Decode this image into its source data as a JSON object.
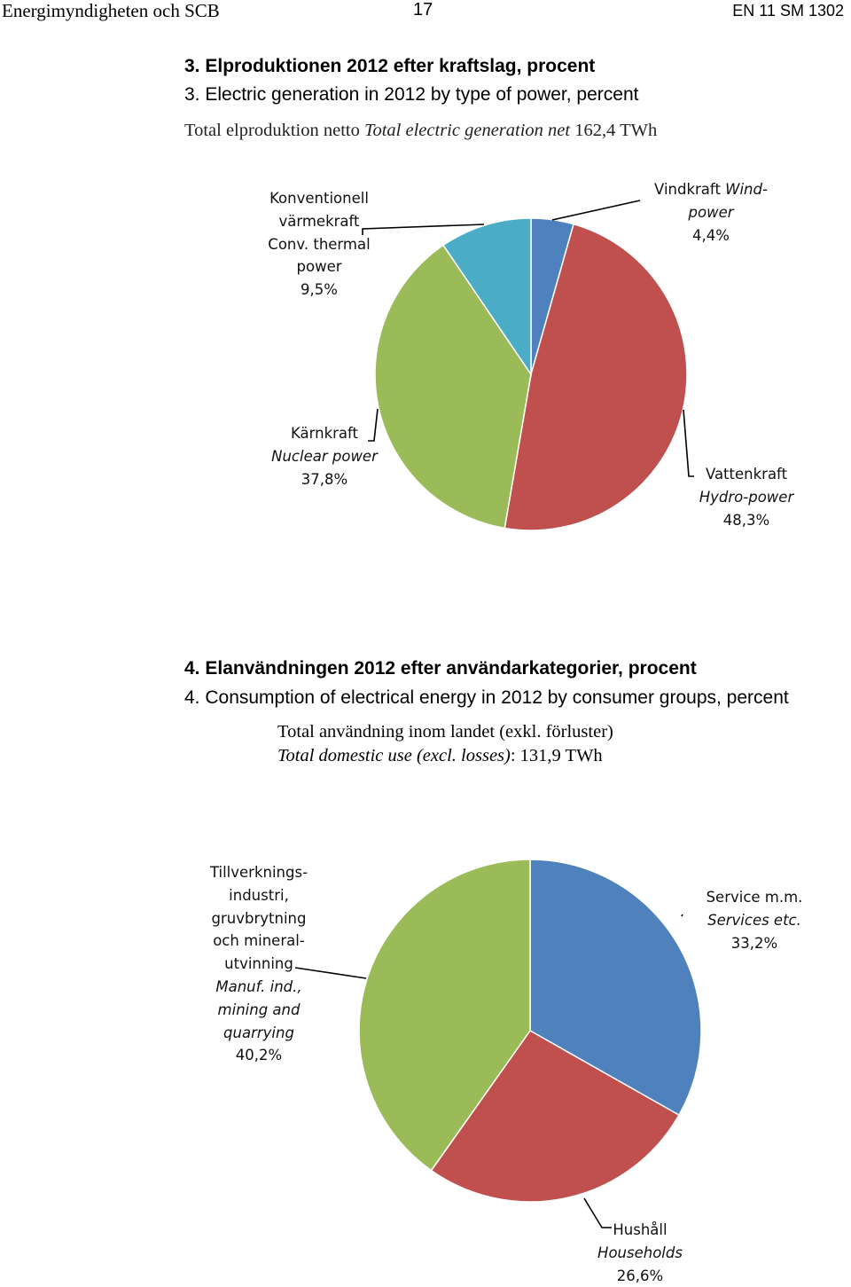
{
  "header": {
    "left": "Energimyndigheten och SCB",
    "page": "17",
    "right": "EN 11 SM 1302"
  },
  "section3": {
    "title_sv": "3. Elproduktionen 2012 efter kraftslag, procent",
    "title_en": "3. Electric generation in 2012 by type of power, percent",
    "total_sv": "Total elproduktion netto ",
    "total_en": "Total electric generation net",
    "total_value": " 162,4 TWh"
  },
  "section4": {
    "title_sv": "4. Elanvändningen 2012 efter användarkategorier, procent",
    "title_en": "4. Consumption of electrical energy in 2012 by consumer groups, percent",
    "total_sv": "Total användning inom landet (exkl. förluster)",
    "total_en": "Total domestic use (excl. losses)",
    "total_value": ":  131,9 TWh"
  },
  "labels3": {
    "wind": {
      "l1": "Vindkraft ",
      "l1i": "Wind-",
      "l2i": "power",
      "pct": "4,4%"
    },
    "hydro": {
      "l1": "Vattenkraft",
      "l2i": "Hydro-power",
      "pct": "48,3%"
    },
    "nuclear": {
      "l1": "Kärnkraft",
      "l2i": "Nuclear power",
      "pct": "37,8%"
    },
    "thermal": {
      "l1": "Konventionell",
      "l2": "värmekraft",
      "l3": "Conv. thermal",
      "l4": "power",
      "pct": "9,5%"
    }
  },
  "labels4": {
    "services": {
      "l1": "Service m.m.",
      "l2i": "Services etc.",
      "pct": "33,2%"
    },
    "households": {
      "l1": "Hushåll",
      "l2i": "Households",
      "pct": "26,6%"
    },
    "industry": {
      "l1": "Tillverknings-",
      "l2": "industri,",
      "l3": "gruvbrytning",
      "l4": "och mineral-",
      "l5": "utvinning",
      "l6i": "Manuf. ind.,",
      "l7i": "mining and",
      "l8i": "quarrying",
      "pct": "40,2%"
    }
  },
  "chart_data": [
    {
      "type": "pie",
      "title": "3. Elproduktionen 2012 efter kraftslag, procent",
      "categories": [
        "Vindkraft Wind-power",
        "Vattenkraft Hydro-power",
        "Kärnkraft Nuclear power",
        "Konventionell värmekraft Conv. thermal power"
      ],
      "values": [
        4.4,
        48.3,
        37.8,
        9.5
      ],
      "colors": [
        "#4f81bd",
        "#c0504d",
        "#9bbb59",
        "#4bacc6"
      ],
      "start": "12 o'clock",
      "direction": "clockwise"
    },
    {
      "type": "pie",
      "title": "4. Elanvändningen 2012 efter användarkategorier, procent",
      "categories": [
        "Service m.m. Services etc.",
        "Hushåll Households",
        "Tillverkningsindustri, gruvbrytning och mineralutvinning Manuf. ind., mining and quarrying"
      ],
      "values": [
        33.2,
        26.6,
        40.2
      ],
      "colors": [
        "#4f81bd",
        "#c0504d",
        "#9bbb59"
      ],
      "start": "12 o'clock",
      "direction": "clockwise"
    }
  ]
}
